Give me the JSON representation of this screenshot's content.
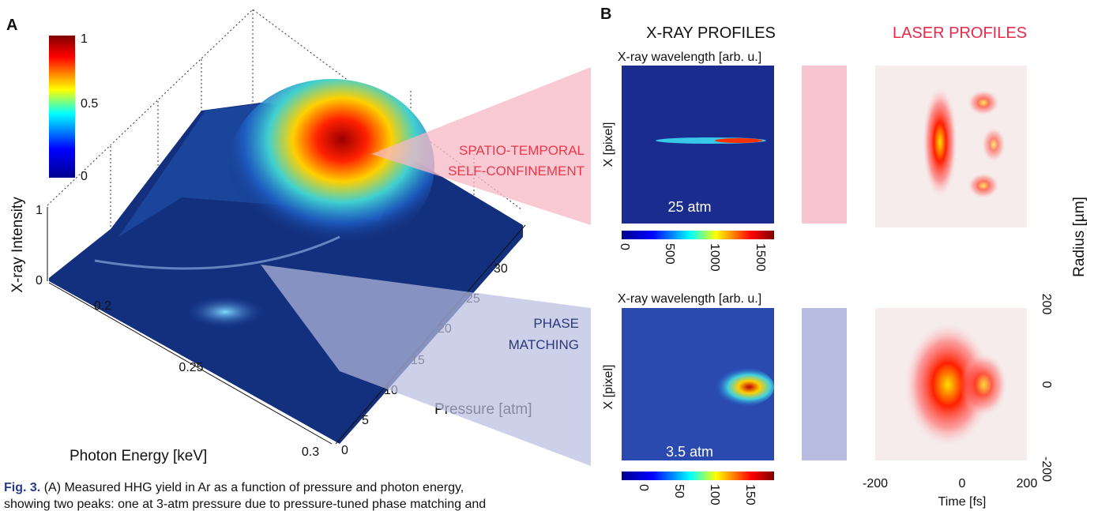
{
  "panel_a": {
    "label": "A",
    "colorbar_ticks": [
      "1",
      "0.5",
      "0"
    ],
    "z_label": "X-ray Intensity",
    "z_ticks": [
      "1",
      "0"
    ],
    "x_label": "Photon Energy [keV]",
    "x_ticks": [
      "0.2",
      "0.25",
      "0.3"
    ],
    "y_label": "Pressure [atm]",
    "y_ticks": [
      "0",
      "5",
      "10",
      "15",
      "20",
      "25",
      "30"
    ],
    "annotation_top": [
      "SPATIO-TEMPORAL",
      "SELF-CONFINEMENT"
    ],
    "annotation_bottom": [
      "PHASE",
      "MATCHING"
    ]
  },
  "panel_b": {
    "label": "B",
    "xray_title": "X-RAY PROFILES",
    "laser_title": "LASER PROFILES",
    "top": {
      "image_title": "X-ray wavelength [arb. u.]",
      "y_label": "X [pixel]",
      "pressure": "25 atm",
      "colorbar_ticks": [
        "0",
        "500",
        "1000",
        "1500"
      ]
    },
    "bottom": {
      "image_title": "X-ray wavelength [arb. u.]",
      "y_label": "X [pixel]",
      "pressure": "3.5 atm",
      "colorbar_ticks": [
        "0",
        "50",
        "100",
        "150"
      ]
    },
    "time_ticks": [
      "-200",
      "0",
      "200"
    ],
    "time_label": "Time [fs]",
    "radius_ticks": [
      "200",
      "0",
      "-200"
    ],
    "radius_label": "Radius [µm]"
  },
  "caption": {
    "label": "Fig. 3.",
    "lines": [
      "(A) Measured HHG yield in Ar as a function of pressure and photon energy,",
      "showing two peaks: one at 3-atm pressure due to pressure-tuned phase matching and"
    ]
  }
}
